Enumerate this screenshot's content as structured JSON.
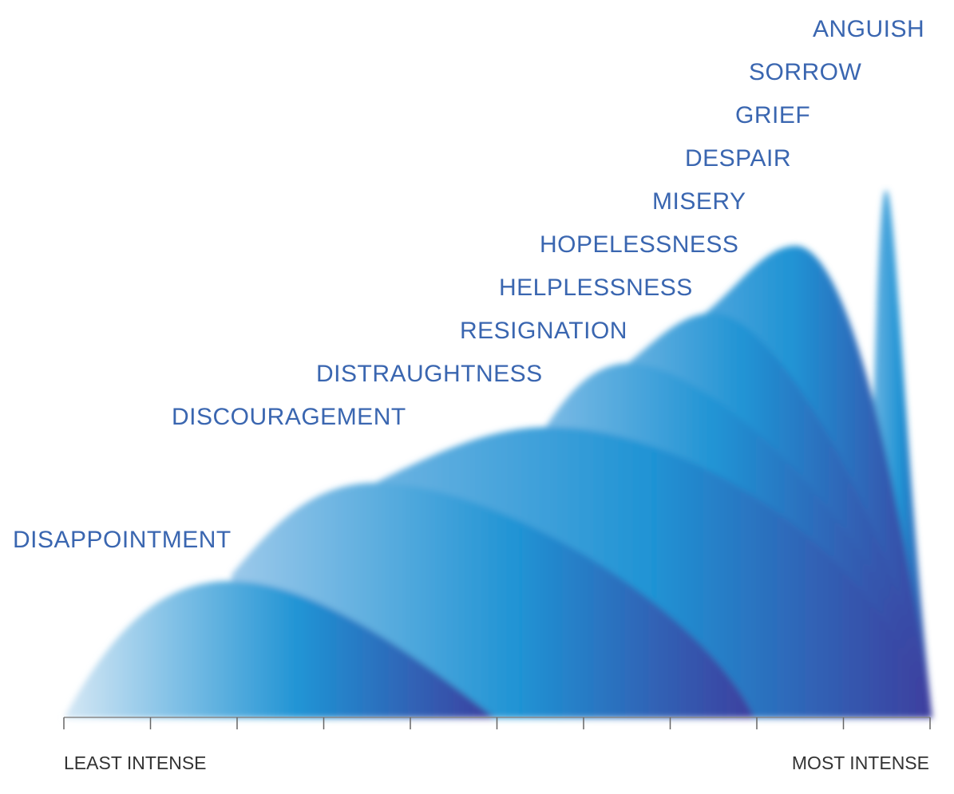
{
  "diagram": {
    "emotions": [
      "DISAPPOINTMENT",
      "DISCOURAGEMENT",
      "DISTRAUGHTNESS",
      "RESIGNATION",
      "HELPLESSNESS",
      "HOPELESSNESS",
      "MISERY",
      "DESPAIR",
      "GRIEF",
      "SORROW",
      "ANGUISH"
    ],
    "axis": {
      "least_label": "LEAST INTENSE",
      "most_label": "MOST INTENSE"
    },
    "colors": {
      "label": "#3a66b0",
      "wave_light": "#c5dff2",
      "wave_mid": "#1f93d4",
      "wave_dark": "#3d3f9f",
      "axis_line": "#888888"
    }
  }
}
